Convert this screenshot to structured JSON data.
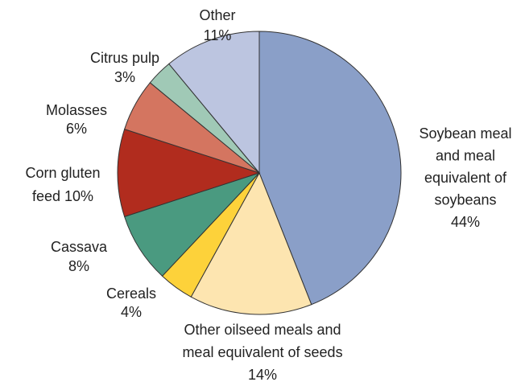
{
  "chart_data": {
    "type": "pie",
    "categories": [
      [
        "Soybean meal",
        "and meal",
        "equivalent of",
        "soybeans"
      ],
      [
        "Other oilseed meals and",
        "meal equivalent of seeds"
      ],
      [
        "Cereals"
      ],
      [
        "Cassava"
      ],
      [
        "Corn gluten",
        "feed"
      ],
      [
        "Molasses"
      ],
      [
        "Citrus pulp"
      ],
      [
        "Other"
      ]
    ],
    "values": [
      44,
      14,
      4,
      8,
      10,
      6,
      3,
      11
    ],
    "value_labels": [
      "44%",
      "14%",
      "4%",
      "8%",
      "10%",
      "6%",
      "3%",
      "11%"
    ],
    "colors": [
      "#8a9fc8",
      "#fde5b0",
      "#fdd23a",
      "#4a9a80",
      "#b12c1e",
      "#d47560",
      "#a0c9b6",
      "#bcc5e0"
    ]
  }
}
